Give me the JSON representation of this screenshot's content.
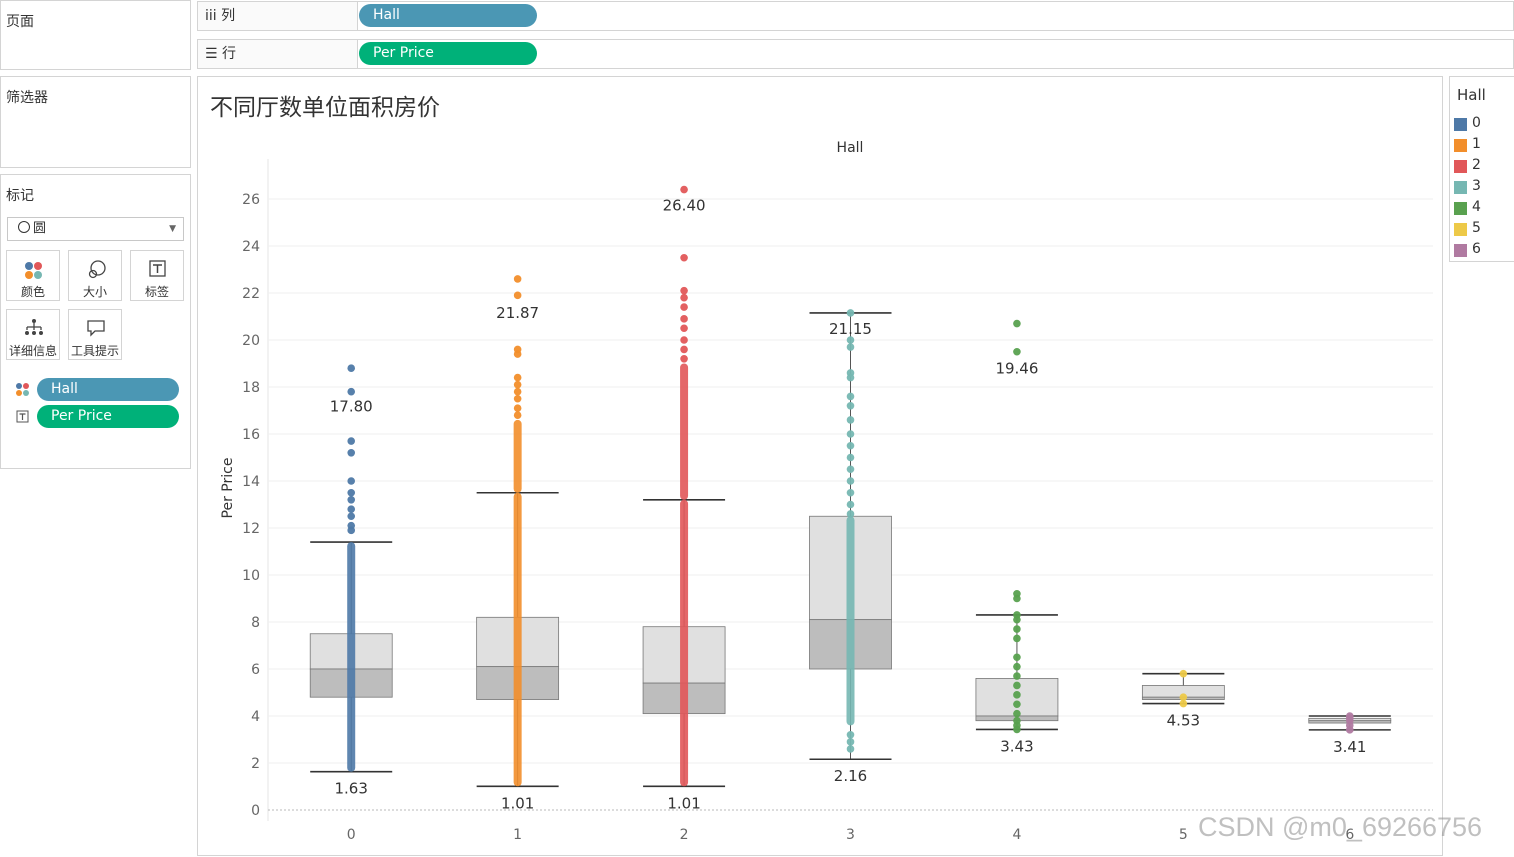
{
  "pages_card": {
    "title": "页面"
  },
  "filters_card": {
    "title": "筛选器"
  },
  "marks_card": {
    "title": "标记",
    "mark_type": "圆",
    "buttons": {
      "color": "颜色",
      "size": "大小",
      "label": "标签",
      "detail": "详细信息",
      "tooltip": "工具提示"
    },
    "fields": [
      {
        "field": "Hall",
        "encoding": "color"
      },
      {
        "field": "Per Price",
        "encoding": "label"
      }
    ]
  },
  "shelves": {
    "columns": {
      "icon": "iii",
      "label": "列",
      "pill": "Hall"
    },
    "rows": {
      "icon": "☰",
      "label": "行",
      "pill": "Per Price"
    }
  },
  "legend": {
    "title": "Hall",
    "items": [
      {
        "label": "0",
        "color": "#4e79a7"
      },
      {
        "label": "1",
        "color": "#f28e2b"
      },
      {
        "label": "2",
        "color": "#e15759"
      },
      {
        "label": "3",
        "color": "#76b7b2"
      },
      {
        "label": "4",
        "color": "#59a14f"
      },
      {
        "label": "5",
        "color": "#edc948"
      },
      {
        "label": "6",
        "color": "#b07aa1"
      }
    ]
  },
  "watermark": "CSDN @m0_69266756",
  "chart_data": {
    "type": "box",
    "title": "不同厅数单位面积房价",
    "column_header": "Hall",
    "xlabel": "",
    "ylabel": "Per Price",
    "ylim": [
      0,
      28
    ],
    "yticks": [
      0,
      2,
      4,
      6,
      8,
      10,
      12,
      14,
      16,
      18,
      20,
      22,
      24,
      26
    ],
    "grid": true,
    "categories": [
      "0",
      "1",
      "2",
      "3",
      "4",
      "5",
      "6"
    ],
    "boxes": [
      {
        "hall": "0",
        "color": "#4e79a7",
        "min": 1.63,
        "q1": 4.8,
        "median": 6.0,
        "q3": 7.5,
        "upper_whisker": 11.4,
        "max": 18.8,
        "label_top": "17.80",
        "label_bottom": "1.63",
        "outliers": [
          18.8,
          17.8,
          15.7,
          15.2,
          14.0,
          13.5,
          13.2,
          12.8,
          12.5,
          12.1,
          11.9
        ],
        "dense_ranges": [
          [
            1.63,
            11.4
          ]
        ]
      },
      {
        "hall": "1",
        "color": "#f28e2b",
        "min": 1.01,
        "q1": 4.7,
        "median": 6.1,
        "q3": 8.2,
        "upper_whisker": 13.5,
        "max": 22.6,
        "label_top": "21.87",
        "label_bottom": "1.01",
        "outliers": [
          22.6,
          21.9,
          19.6,
          19.4,
          18.4,
          18.1,
          17.8,
          17.5,
          17.1,
          16.8
        ],
        "dense_ranges": [
          [
            1.01,
            13.5
          ],
          [
            13.5,
            16.6
          ]
        ]
      },
      {
        "hall": "2",
        "color": "#e15759",
        "min": 1.01,
        "q1": 4.1,
        "median": 5.4,
        "q3": 7.8,
        "upper_whisker": 13.2,
        "max": 26.4,
        "label_top": "26.40",
        "label_bottom": "1.01",
        "outliers": [
          26.4,
          23.5,
          22.1,
          21.8,
          21.4,
          20.9,
          20.5,
          20.0,
          19.6,
          19.2
        ],
        "dense_ranges": [
          [
            1.01,
            13.2
          ],
          [
            13.2,
            19.0
          ]
        ]
      },
      {
        "hall": "3",
        "color": "#76b7b2",
        "min": 2.16,
        "q1": 6.0,
        "median": 8.1,
        "q3": 12.5,
        "upper_whisker": 21.15,
        "max": 21.15,
        "label_top": "21.15",
        "label_bottom": "2.16",
        "outliers": [
          21.15,
          20.0,
          19.7,
          18.6,
          18.4,
          17.6,
          17.2,
          16.6,
          16.0,
          15.5,
          15.0,
          14.5,
          14.0,
          13.5,
          13.0,
          12.6,
          2.6,
          2.9,
          3.2
        ],
        "dense_ranges": [
          [
            3.6,
            12.5
          ]
        ]
      },
      {
        "hall": "4",
        "color": "#59a14f",
        "min": 3.43,
        "q1": 3.8,
        "median": 4.0,
        "q3": 5.6,
        "upper_whisker": 8.3,
        "max": 20.7,
        "label_top": "19.46",
        "label_bottom": "3.43",
        "outliers": [
          20.7,
          19.5,
          9.2,
          9.0,
          8.3,
          8.1,
          7.7,
          7.3,
          6.5,
          6.1,
          5.7,
          5.3,
          4.9,
          4.5,
          4.1,
          3.8,
          3.6,
          3.43
        ],
        "dense_ranges": []
      },
      {
        "hall": "5",
        "color": "#edc948",
        "min": 4.53,
        "q1": 4.7,
        "median": 4.8,
        "q3": 5.3,
        "upper_whisker": 5.8,
        "max": 5.8,
        "label_top": "",
        "label_bottom": "4.53",
        "outliers": [
          5.8,
          4.8,
          4.53
        ],
        "dense_ranges": []
      },
      {
        "hall": "6",
        "color": "#b07aa1",
        "min": 3.41,
        "q1": 3.7,
        "median": 3.8,
        "q3": 3.9,
        "upper_whisker": 4.0,
        "max": 4.0,
        "label_top": "",
        "label_bottom": "3.41",
        "outliers": [
          4.0,
          3.9,
          3.8,
          3.6,
          3.41
        ],
        "dense_ranges": []
      }
    ]
  }
}
